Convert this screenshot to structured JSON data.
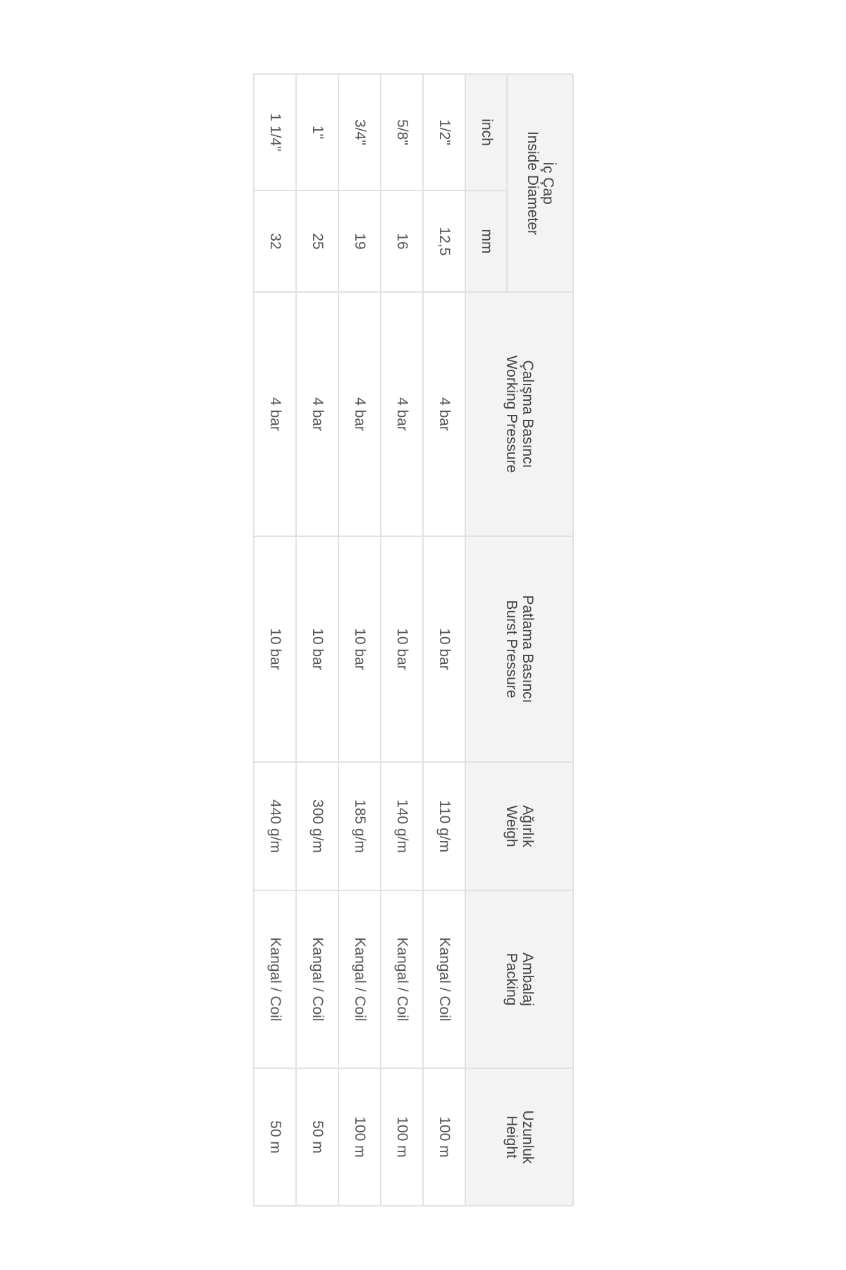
{
  "headers": {
    "diameter": [
      "İç Çap",
      "Inside Diameter"
    ],
    "inch": "inch",
    "mm": "mm",
    "working": [
      "Çalışma Basıncı",
      "Working Pressure"
    ],
    "burst": [
      "Patlama Basıncı",
      "Burst Pressure"
    ],
    "weight": [
      "Ağırlık",
      "Weigh"
    ],
    "packing": [
      "Ambalaj",
      "Packing"
    ],
    "length": [
      "Uzunluk",
      "Height"
    ]
  },
  "rows": [
    [
      "1/2\"",
      "12,5",
      "4 bar",
      "10 bar",
      "110 g/m",
      "Kangal / Coil",
      "100 m"
    ],
    [
      "5/8\"",
      "16",
      "4 bar",
      "10 bar",
      "140 g/m",
      "Kangal / Coil",
      "100 m"
    ],
    [
      "3/4\"",
      "19",
      "4 bar",
      "10 bar",
      "185 g/m",
      "Kangal / Coil",
      "100 m"
    ],
    [
      "1\"",
      "25",
      "4 bar",
      "10 bar",
      "300 g/m",
      "Kangal / Coil",
      "50 m"
    ],
    [
      "1 1/4\"",
      "32",
      "4 bar",
      "10 bar",
      "440 g/m",
      "Kangal / Coil",
      "50 m"
    ]
  ]
}
